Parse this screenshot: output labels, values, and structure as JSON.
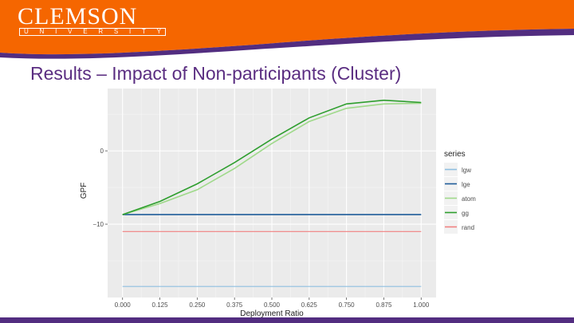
{
  "header": {
    "logo_word": "CLEMSON",
    "logo_sub_letters": [
      "U",
      "N",
      "I",
      "V",
      "E",
      "R",
      "S",
      "I",
      "T",
      "Y"
    ],
    "colors": {
      "orange": "#f56600",
      "purple": "#522d80"
    }
  },
  "slide": {
    "title": "Results – Impact of Non-participants (Cluster)"
  },
  "chart_data": {
    "type": "line",
    "xlabel": "Deployment Ratio",
    "ylabel": "GPF",
    "x": [
      0.0,
      0.125,
      0.25,
      0.375,
      0.5,
      0.625,
      0.75,
      0.875,
      1.0
    ],
    "x_tick_labels": [
      "0.000",
      "0.125",
      "0.250",
      "0.375",
      "0.500",
      "0.625",
      "0.750",
      "0.875",
      "1.000"
    ],
    "y_ticks": [
      0,
      -10
    ],
    "y_tick_labels": [
      "0",
      "−10"
    ],
    "xlim": [
      -0.05,
      1.05
    ],
    "ylim": [
      -20,
      8.5
    ],
    "grid": true,
    "legend": {
      "title": "series",
      "placement": "right"
    },
    "series": [
      {
        "name": "lgw",
        "color": "#8fbfe0",
        "values": [
          -18.5,
          -18.5,
          -18.5,
          -18.5,
          -18.5,
          -18.5,
          -18.5,
          -18.5,
          -18.5
        ]
      },
      {
        "name": "lge",
        "color": "#1f5c99",
        "values": [
          -8.7,
          -8.7,
          -8.7,
          -8.7,
          -8.7,
          -8.7,
          -8.7,
          -8.7,
          -8.7
        ]
      },
      {
        "name": "atom",
        "color": "#9fd98a",
        "values": [
          -8.7,
          -7.2,
          -5.3,
          -2.4,
          1.0,
          4.0,
          5.8,
          6.4,
          6.5
        ]
      },
      {
        "name": "gg",
        "color": "#2e9e2e",
        "values": [
          -8.7,
          -6.9,
          -4.5,
          -1.6,
          1.6,
          4.5,
          6.4,
          6.9,
          6.6
        ]
      },
      {
        "name": "rand",
        "color": "#f08080",
        "values": [
          -11,
          -11,
          -11,
          -11,
          -11,
          -11,
          -11,
          -11,
          -11
        ]
      }
    ]
  }
}
